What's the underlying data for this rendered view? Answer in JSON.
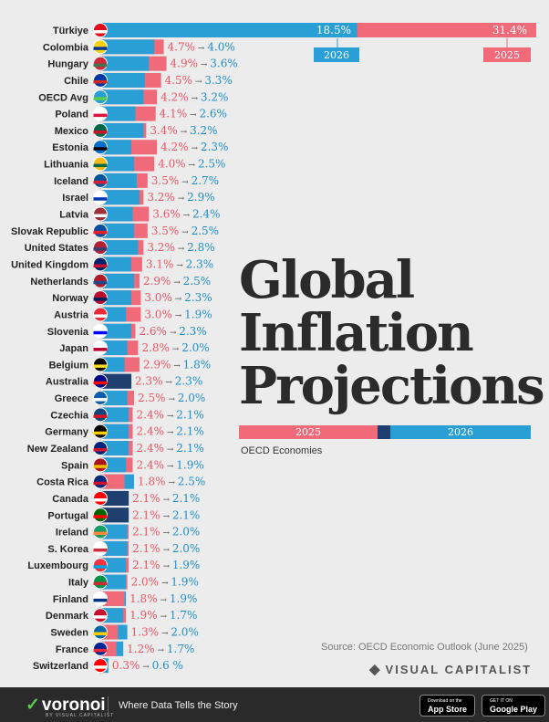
{
  "title_lines": [
    "Global",
    "Inflation",
    "Projections"
  ],
  "subtitle": "OECD Economies",
  "source": "Source: OECD Economic Outlook (June 2025)",
  "brand": "VISUAL CAPITALIST",
  "footer": {
    "logo": "voronoi",
    "logo_sub": "BY VISUAL CAPITALIST",
    "tagline": "Where Data Tells the Story",
    "app_store_small": "Download on the",
    "app_store": "App Store",
    "google_play_small": "GET IT ON",
    "google_play": "Google Play"
  },
  "colors": {
    "y2025": "#f06a7a",
    "y2026": "#2a9fd6",
    "overlap": "#1f3f6e",
    "text2025": "#ee5567",
    "text2026": "#1f8fcb"
  },
  "chart_data": {
    "type": "bar",
    "series": [
      {
        "name": "2025",
        "values": [
          31.4,
          4.7,
          4.9,
          4.5,
          4.2,
          4.1,
          3.4,
          4.2,
          4.0,
          3.5,
          3.2,
          3.6,
          3.5,
          3.2,
          3.1,
          2.9,
          3.0,
          3.0,
          2.6,
          2.8,
          2.9,
          2.3,
          2.5,
          2.4,
          2.4,
          2.4,
          2.4,
          1.8,
          2.1,
          2.1,
          2.1,
          2.1,
          2.1,
          2.0,
          1.8,
          1.9,
          1.3,
          1.2,
          0.3
        ]
      },
      {
        "name": "2026",
        "values": [
          18.5,
          4.0,
          3.6,
          3.3,
          3.2,
          2.6,
          3.2,
          2.3,
          2.5,
          2.7,
          2.9,
          2.4,
          2.5,
          2.8,
          2.3,
          2.5,
          2.3,
          1.9,
          2.3,
          2.0,
          1.8,
          2.3,
          2.0,
          2.1,
          2.1,
          2.1,
          1.9,
          2.5,
          2.1,
          2.1,
          2.0,
          2.0,
          1.9,
          1.9,
          1.9,
          1.7,
          2.0,
          1.7,
          0.6
        ]
      }
    ],
    "categories": [
      "Türkiye",
      "Colombia",
      "Hungary",
      "Chile",
      "OECD Avg",
      "Poland",
      "Mexico",
      "Estonia",
      "Lithuania",
      "Iceland",
      "Israel",
      "Latvia",
      "Slovak Republic",
      "United States",
      "United Kingdom",
      "Netherlands",
      "Norway",
      "Austria",
      "Slovenia",
      "Japan",
      "Belgium",
      "Australia",
      "Greece",
      "Czechia",
      "Germany",
      "New Zealand",
      "Spain",
      "Costa Rica",
      "Canada",
      "Portugal",
      "Ireland",
      "S. Korea",
      "Luxembourg",
      "Italy",
      "Finland",
      "Denmark",
      "Sweden",
      "France",
      "Switzerland"
    ],
    "flag_colors": [
      [
        "#e30a17",
        "#fff"
      ],
      [
        "#fcd116",
        "#003893"
      ],
      [
        "#ce2939",
        "#477050"
      ],
      [
        "#0039a6",
        "#d52b1e"
      ],
      [
        "#2a9fd6",
        "#5ccb52"
      ],
      [
        "#fff",
        "#dc143c"
      ],
      [
        "#006847",
        "#ce1126"
      ],
      [
        "#0072ce",
        "#000"
      ],
      [
        "#fdb913",
        "#006a44"
      ],
      [
        "#02529c",
        "#dc1e35"
      ],
      [
        "#fff",
        "#0038b8"
      ],
      [
        "#9e3039",
        "#fff"
      ],
      [
        "#0b4ea2",
        "#ee1c25"
      ],
      [
        "#b22234",
        "#3c3b6e"
      ],
      [
        "#012169",
        "#c8102e"
      ],
      [
        "#ae1c28",
        "#21468b"
      ],
      [
        "#ba0c2f",
        "#00205b"
      ],
      [
        "#ed2939",
        "#fff"
      ],
      [
        "#fff",
        "#0000ff"
      ],
      [
        "#fff",
        "#bc002d"
      ],
      [
        "#000",
        "#fdda24"
      ],
      [
        "#00008b",
        "#ff0000"
      ],
      [
        "#0d5eaf",
        "#fff"
      ],
      [
        "#11457e",
        "#d7141a"
      ],
      [
        "#000",
        "#ffce00"
      ],
      [
        "#00247d",
        "#cc142b"
      ],
      [
        "#aa151b",
        "#f1bf00"
      ],
      [
        "#002b7f",
        "#ce1126"
      ],
      [
        "#ff0000",
        "#fff"
      ],
      [
        "#006600",
        "#ff0000"
      ],
      [
        "#169b62",
        "#ff883e"
      ],
      [
        "#fff",
        "#cd2e3a"
      ],
      [
        "#ef3340",
        "#00a3e0"
      ],
      [
        "#009246",
        "#ce2b37"
      ],
      [
        "#fff",
        "#003580"
      ],
      [
        "#c8102e",
        "#fff"
      ],
      [
        "#006aa7",
        "#fecc00"
      ],
      [
        "#002395",
        "#ed2939"
      ],
      [
        "#ff0000",
        "#fff"
      ]
    ],
    "value_labels": [
      [
        "31.4%",
        "18.5%"
      ],
      [
        "4.7%",
        "4.0%"
      ],
      [
        "4.9%",
        "3.6%"
      ],
      [
        "4.5%",
        "3.3%"
      ],
      [
        "4.2%",
        "3.2%"
      ],
      [
        "4.1%",
        "2.6%"
      ],
      [
        "3.4%",
        "3.2%"
      ],
      [
        "4.2%",
        "2.3%"
      ],
      [
        "4.0%",
        "2.5%"
      ],
      [
        "3.5%",
        "2.7%"
      ],
      [
        "3.2%",
        "2.9%"
      ],
      [
        "3.6%",
        "2.4%"
      ],
      [
        "3.5%",
        "2.5%"
      ],
      [
        "3.2%",
        "2.8%"
      ],
      [
        "3.1%",
        "2.3%"
      ],
      [
        "2.9%",
        "2.5%"
      ],
      [
        "3.0%",
        "2.3%"
      ],
      [
        "3.0%",
        "1.9%"
      ],
      [
        "2.6%",
        "2.3%"
      ],
      [
        "2.8%",
        "2.0%"
      ],
      [
        "2.9%",
        "1.8%"
      ],
      [
        "2.3%",
        "2.3%"
      ],
      [
        "2.5%",
        "2.0%"
      ],
      [
        "2.4%",
        "2.1%"
      ],
      [
        "2.4%",
        "2.1%"
      ],
      [
        "2.4%",
        "2.1%"
      ],
      [
        "2.4%",
        "1.9%"
      ],
      [
        "1.8%",
        "2.5%"
      ],
      [
        "2.1%",
        "2.1%"
      ],
      [
        "2.1%",
        "2.1%"
      ],
      [
        "2.1%",
        "2.0%"
      ],
      [
        "2.1%",
        "2.0%"
      ],
      [
        "2.1%",
        "1.9%"
      ],
      [
        "2.0%",
        "1.9%"
      ],
      [
        "1.8%",
        "1.9%"
      ],
      [
        "1.9%",
        "1.7%"
      ],
      [
        "1.3%",
        "2.0%"
      ],
      [
        "1.2%",
        "1.7%"
      ],
      [
        "0.3%",
        "0.6 %"
      ]
    ],
    "year_tags": [
      "2026",
      "2025"
    ],
    "legend": [
      "2025",
      "2026"
    ],
    "legend_placement": "below-title",
    "xlim": [
      0,
      31.4
    ],
    "grid": false
  }
}
